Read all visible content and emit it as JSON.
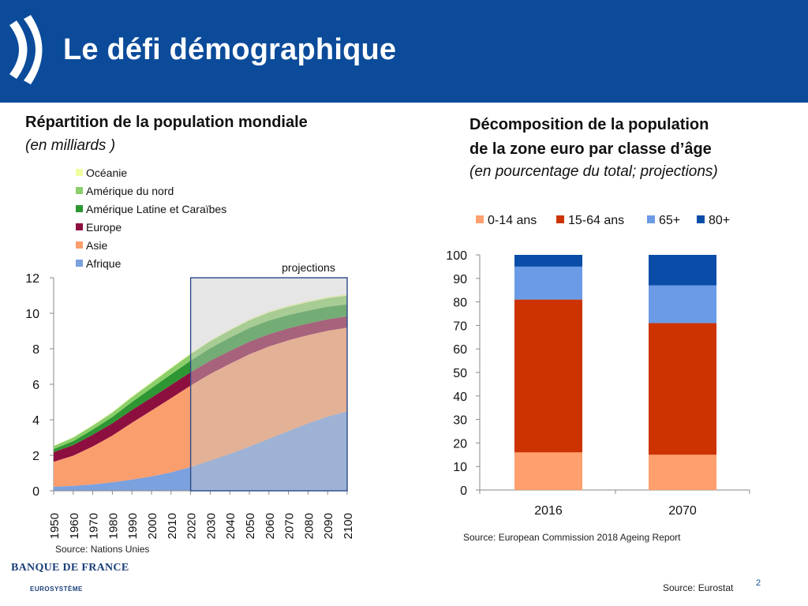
{
  "slide": {
    "title": "Le défi démographique",
    "page_number": "2",
    "footer_source": "Source: Eurostat",
    "logo_name": "BANQUE DE FRANCE",
    "logo_sub": "EUROSYSTÈME",
    "colors": {
      "header_bg": "#0b4b9a"
    }
  },
  "chart_data": [
    {
      "type": "area",
      "stacked": true,
      "title": "Répartition de la population mondiale",
      "subtitle": "(en milliards )",
      "annotation": "projections",
      "projection_start": 2020,
      "source": "Source: Nations Unies",
      "x": [
        1950,
        1960,
        1970,
        1980,
        1990,
        2000,
        2010,
        2020,
        2030,
        2040,
        2050,
        2060,
        2070,
        2080,
        2090,
        2100
      ],
      "x_tick_labels": [
        "1950",
        "1960",
        "1970",
        "1980",
        "1990",
        "2000",
        "2010",
        "2020",
        "2030",
        "2040",
        "2050",
        "2060",
        "2070",
        "2080",
        "2090",
        "2100"
      ],
      "ylim": [
        0,
        12
      ],
      "y_ticks": [
        0,
        2,
        4,
        6,
        8,
        10,
        12
      ],
      "legend_position": "top-left",
      "series": [
        {
          "name": "Afrique",
          "color": "#7ba1de",
          "values": [
            0.23,
            0.28,
            0.36,
            0.48,
            0.63,
            0.81,
            1.04,
            1.34,
            1.7,
            2.08,
            2.49,
            2.93,
            3.37,
            3.8,
            4.18,
            4.47
          ]
        },
        {
          "name": "Asie",
          "color": "#fa9e6e",
          "values": [
            1.4,
            1.7,
            2.14,
            2.63,
            3.2,
            3.71,
            4.18,
            4.59,
            4.88,
            5.07,
            5.2,
            5.2,
            5.11,
            4.97,
            4.84,
            4.72
          ]
        },
        {
          "name": "Europe",
          "color": "#8d0f3f",
          "values": [
            0.55,
            0.6,
            0.66,
            0.69,
            0.72,
            0.73,
            0.74,
            0.75,
            0.74,
            0.72,
            0.71,
            0.69,
            0.67,
            0.65,
            0.64,
            0.63
          ]
        },
        {
          "name": "Amérique Latine et Caraïbes",
          "color": "#2e9632",
          "values": [
            0.17,
            0.22,
            0.29,
            0.36,
            0.45,
            0.53,
            0.6,
            0.65,
            0.71,
            0.75,
            0.77,
            0.77,
            0.75,
            0.73,
            0.71,
            0.68
          ]
        },
        {
          "name": "Amérique du nord",
          "color": "#8ccf6a",
          "values": [
            0.17,
            0.2,
            0.23,
            0.25,
            0.28,
            0.31,
            0.34,
            0.37,
            0.39,
            0.41,
            0.43,
            0.45,
            0.46,
            0.47,
            0.48,
            0.49
          ]
        },
        {
          "name": "Océanie",
          "color": "#eeff9e",
          "values": [
            0.01,
            0.02,
            0.02,
            0.02,
            0.03,
            0.03,
            0.04,
            0.04,
            0.05,
            0.05,
            0.06,
            0.06,
            0.07,
            0.07,
            0.07,
            0.07
          ]
        }
      ]
    },
    {
      "type": "bar",
      "stacked": true,
      "title_lines": [
        "Décomposition de la population",
        "de la zone euro par classe d’âge"
      ],
      "subtitle": "(en pourcentage du total; projections)",
      "source": "Source: European Commission 2018 Ageing Report",
      "categories": [
        "2016",
        "2070"
      ],
      "ylim": [
        0,
        100
      ],
      "y_ticks": [
        0,
        10,
        20,
        30,
        40,
        50,
        60,
        70,
        80,
        90,
        100
      ],
      "legend_position": "top",
      "series": [
        {
          "name": "0-14 ans",
          "color": "#ffa06e",
          "values": [
            16,
            15
          ]
        },
        {
          "name": "15-64 ans",
          "color": "#cc3300",
          "values": [
            65,
            56
          ]
        },
        {
          "name": "65+",
          "color": "#6b9be6",
          "values": [
            14,
            16
          ]
        },
        {
          "name": "80+",
          "color": "#0a4da8",
          "values": [
            5,
            13
          ]
        }
      ]
    }
  ]
}
